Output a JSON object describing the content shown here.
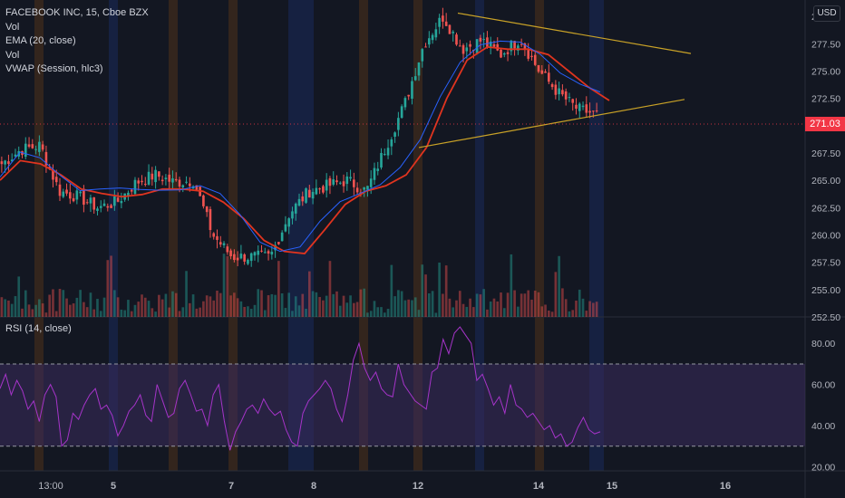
{
  "header": {
    "symbol_line": "FACEBOOK INC, 15, Cboe BZX",
    "indicators": [
      "Vol",
      "EMA (20, close)",
      "Vol",
      "VWAP (Session, hlc3)"
    ],
    "currency": "USD"
  },
  "rsi_panel": {
    "label": "RSI (14, close)"
  },
  "last_price": "271.03",
  "colors": {
    "background": "#131722",
    "ema": "#e0341f",
    "vwap": "#2962ff",
    "trendline": "#c9a227",
    "rsi_line": "#a634c9",
    "rsi_band": "#3b2b5c",
    "up": "#26a69a",
    "down": "#ef5350",
    "session_orange": "#f57c00",
    "session_blue": "#2962ff",
    "last_price": "#f23645"
  },
  "chart_data": [
    {
      "type": "candlestick",
      "title": "FACEBOOK INC, 15, Cboe BZX",
      "y_axis_ticks": [
        "280.00",
        "277.50",
        "275.00",
        "272.50",
        "270.00",
        "267.50",
        "265.00",
        "262.50",
        "260.00",
        "257.50",
        "255.00",
        "252.50"
      ],
      "ylim": [
        252.5,
        281.5
      ],
      "x_axis_ticks": [
        "13:00",
        "5",
        "7",
        "8",
        "12",
        "14",
        "15",
        "16"
      ],
      "last_price": 271.03,
      "ohlc_estimate": {
        "close_path": [
          [
            "3 13:00",
            266.5
          ],
          [
            "4 open",
            267.8
          ],
          [
            "4 10:00",
            268.2
          ],
          [
            "4 12:00",
            264.0
          ],
          [
            "4 15:00",
            263.5
          ],
          [
            "5 open",
            262.5
          ],
          [
            "5 12:00",
            263.0
          ],
          [
            "5 14:00",
            264.8
          ],
          [
            "6 open",
            265.5
          ],
          [
            "6 12:00",
            264.8
          ],
          [
            "6 15:00",
            265.0
          ],
          [
            "7 open",
            260.0
          ],
          [
            "7 11:00",
            258.0
          ],
          [
            "7 15:00",
            258.0
          ],
          [
            "8 open",
            258.0
          ],
          [
            "8 10:00",
            262.0
          ],
          [
            "8 13:00",
            264.0
          ],
          [
            "8 15:00",
            264.5
          ],
          [
            "11 open",
            265.0
          ],
          [
            "11 15:00",
            264.0
          ],
          [
            "12 open",
            268.0
          ],
          [
            "12 11:00",
            272.0
          ],
          [
            "12 13:00",
            277.5
          ],
          [
            "12 15:00",
            280.0
          ],
          [
            "13 open",
            277.0
          ],
          [
            "13 12:00",
            277.8
          ],
          [
            "13 15:00",
            276.5
          ],
          [
            "14 open",
            278.0
          ],
          [
            "14 11:00",
            275.0
          ],
          [
            "14 13:00",
            273.0
          ],
          [
            "14 15:00",
            271.5
          ],
          [
            "14 close",
            271.03
          ]
        ]
      },
      "ema_20": [
        265,
        266.8,
        266.5,
        265.5,
        264.2,
        263.8,
        263.5,
        263.7,
        264.2,
        264.2,
        264.0,
        263.0,
        261.5,
        259.5,
        258.5,
        258.3,
        260.5,
        262.8,
        264.0,
        264.5,
        265.5,
        268.0,
        272.5,
        276.0,
        277.2,
        277.0,
        277.0,
        276.5,
        275.0,
        273.5,
        272.3
      ],
      "trendlines": [
        {
          "from": [
            "13 open",
            280.3
          ],
          "to": [
            "16 03:00",
            276.5
          ]
        },
        {
          "from": [
            "12 open",
            268.0
          ],
          "to": [
            "15 13:00",
            272.4
          ]
        }
      ],
      "session_markers": [
        "13:00",
        "5",
        "7",
        "8",
        "12",
        "14",
        "15"
      ]
    },
    {
      "type": "line",
      "title": "RSI (14, close)",
      "y_axis_ticks": [
        "80.00",
        "60.00",
        "40.00",
        "20.00"
      ],
      "ylim": [
        18,
        92
      ],
      "bands": {
        "upper": 70,
        "lower": 30
      },
      "series": [
        {
          "name": "RSI (14, close)",
          "values": [
            58,
            65,
            55,
            62,
            57,
            48,
            52,
            42,
            55,
            60,
            54,
            30,
            33,
            46,
            43,
            50,
            55,
            58,
            48,
            50,
            45,
            35,
            40,
            47,
            50,
            55,
            45,
            42,
            60,
            52,
            44,
            46,
            58,
            62,
            55,
            47,
            48,
            40,
            55,
            60,
            42,
            28,
            37,
            42,
            48,
            50,
            46,
            53,
            48,
            45,
            47,
            38,
            32,
            30,
            46,
            52,
            55,
            58,
            62,
            58,
            48,
            42,
            55,
            72,
            80,
            68,
            62,
            66,
            58,
            55,
            54,
            70,
            60,
            56,
            52,
            50,
            48,
            66,
            68,
            82,
            75,
            85,
            88,
            84,
            80,
            62,
            65,
            58,
            50,
            54,
            46,
            60,
            50,
            48,
            44,
            46,
            42,
            38,
            40,
            34,
            36,
            30,
            32,
            39,
            44,
            38,
            36,
            37
          ]
        }
      ]
    }
  ]
}
